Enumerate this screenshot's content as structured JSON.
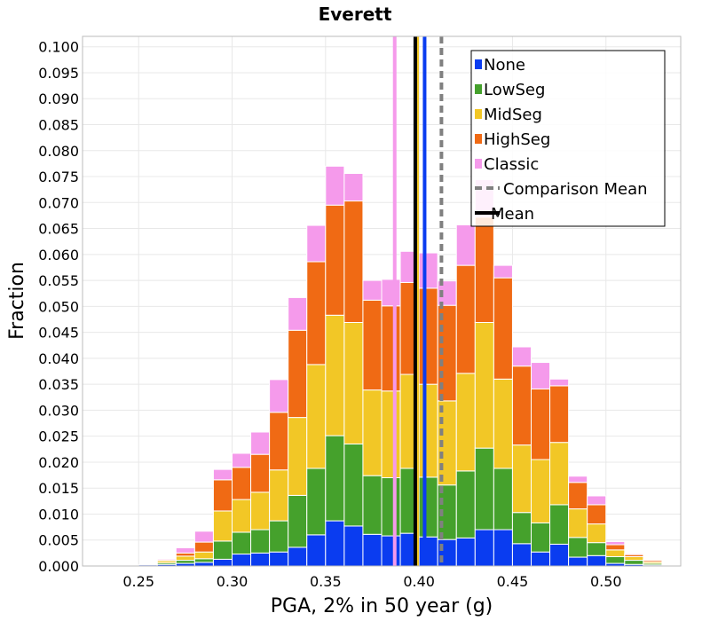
{
  "chart_data": {
    "type": "bar",
    "stacked": true,
    "title": "Everett",
    "xlabel": "PGA, 2% in 50 year (g)",
    "ylabel": "Fraction",
    "xlim": [
      0.22,
      0.54
    ],
    "ylim": [
      0,
      0.102
    ],
    "bin_width": 0.01,
    "grid": true,
    "legend_position": "top-right",
    "x_ticks": [
      "0.25",
      "0.30",
      "0.35",
      "0.40",
      "0.45",
      "0.50"
    ],
    "y_ticks": [
      "0.000",
      "0.005",
      "0.010",
      "0.015",
      "0.020",
      "0.025",
      "0.030",
      "0.035",
      "0.040",
      "0.045",
      "0.050",
      "0.055",
      "0.060",
      "0.065",
      "0.070",
      "0.075",
      "0.080",
      "0.085",
      "0.090",
      "0.095",
      "0.100"
    ],
    "x": [
      0.255,
      0.265,
      0.275,
      0.285,
      0.295,
      0.305,
      0.315,
      0.325,
      0.335,
      0.345,
      0.355,
      0.365,
      0.375,
      0.385,
      0.395,
      0.405,
      0.415,
      0.425,
      0.435,
      0.445,
      0.455,
      0.465,
      0.475,
      0.485,
      0.495,
      0.505,
      0.515,
      0.525,
      0.535
    ],
    "series": [
      {
        "name": "None",
        "color": "#0a3cf0",
        "values": [
          0.0002,
          0.0003,
          0.0005,
          0.0007,
          0.0013,
          0.0023,
          0.0025,
          0.0027,
          0.0036,
          0.006,
          0.0087,
          0.0077,
          0.0061,
          0.0058,
          0.0063,
          0.0056,
          0.0051,
          0.0054,
          0.007,
          0.007,
          0.0043,
          0.0027,
          0.0042,
          0.0017,
          0.002,
          0.0005,
          0.0003,
          0.0002,
          0.0
        ]
      },
      {
        "name": "LowSeg",
        "color": "#45a12c",
        "values": [
          0.0,
          0.0003,
          0.0006,
          0.0007,
          0.0035,
          0.0042,
          0.0045,
          0.006,
          0.01,
          0.0128,
          0.0164,
          0.0158,
          0.0113,
          0.0112,
          0.0125,
          0.0115,
          0.0105,
          0.0129,
          0.0157,
          0.0118,
          0.006,
          0.0056,
          0.0076,
          0.0038,
          0.0025,
          0.0013,
          0.0008,
          0.0003,
          0.0
        ]
      },
      {
        "name": "MidSeg",
        "color": "#f2c726",
        "values": [
          0.0,
          0.0004,
          0.0008,
          0.0013,
          0.0058,
          0.0063,
          0.0072,
          0.0098,
          0.015,
          0.02,
          0.0232,
          0.0234,
          0.0165,
          0.0167,
          0.0181,
          0.0179,
          0.0162,
          0.0188,
          0.0242,
          0.0172,
          0.013,
          0.0122,
          0.012,
          0.0055,
          0.0036,
          0.0013,
          0.0007,
          0.0003,
          0.0
        ]
      },
      {
        "name": "HighSeg",
        "color": "#f06a14",
        "values": [
          0.0,
          0.0002,
          0.0006,
          0.0019,
          0.006,
          0.0062,
          0.0073,
          0.0111,
          0.0168,
          0.0198,
          0.0212,
          0.0234,
          0.0173,
          0.0164,
          0.0177,
          0.0185,
          0.0184,
          0.0208,
          0.0203,
          0.0195,
          0.0152,
          0.0136,
          0.0109,
          0.0051,
          0.0037,
          0.001,
          0.0004,
          0.0003,
          0.0
        ]
      },
      {
        "name": "Classic",
        "color": "#f59aeb",
        "values": [
          0.0,
          0.0002,
          0.001,
          0.0021,
          0.002,
          0.0027,
          0.0043,
          0.0063,
          0.0063,
          0.007,
          0.0075,
          0.0053,
          0.0038,
          0.0051,
          0.006,
          0.0068,
          0.0047,
          0.0078,
          0.0072,
          0.0024,
          0.0037,
          0.0051,
          0.0013,
          0.0012,
          0.0017,
          0.0006,
          0.0002,
          0.0001,
          0.0
        ]
      }
    ],
    "vertical_lines": [
      {
        "name": "Classic mean",
        "color": "#f59aeb",
        "x": 0.387
      },
      {
        "name": "MidSeg mean",
        "color": "#f2c726",
        "x": 0.399
      },
      {
        "name": "None mean",
        "color": "#0a3cf0",
        "x": 0.403
      },
      {
        "name": "Comparison Mean",
        "color": "#808080",
        "x": 0.412,
        "dashed": true
      },
      {
        "name": "Mean",
        "color": "#000000",
        "x": 0.398
      }
    ],
    "legend": [
      {
        "label": "None",
        "color": "#0a3cf0",
        "kind": "box"
      },
      {
        "label": "LowSeg",
        "color": "#45a12c",
        "kind": "box"
      },
      {
        "label": "MidSeg",
        "color": "#f2c726",
        "kind": "box"
      },
      {
        "label": "HighSeg",
        "color": "#f06a14",
        "kind": "box"
      },
      {
        "label": "Classic",
        "color": "#f59aeb",
        "kind": "box"
      },
      {
        "label": "Comparison Mean",
        "color": "#808080",
        "kind": "dashed-line"
      },
      {
        "label": "Mean",
        "color": "#000000",
        "kind": "line"
      }
    ]
  }
}
